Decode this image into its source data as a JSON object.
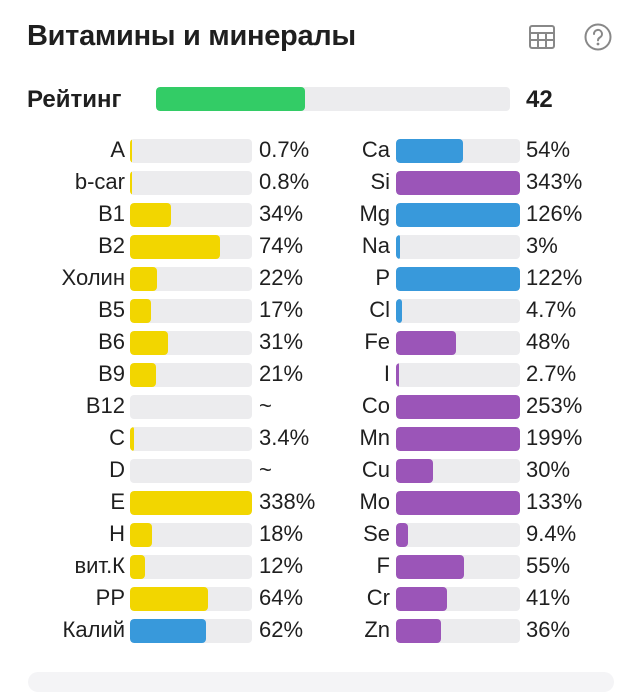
{
  "header": {
    "title": "Витамины и минералы",
    "table_icon": "table-icon",
    "help_icon": "help-circle-icon"
  },
  "rating": {
    "label": "Рейтинг",
    "value": "42",
    "fraction": 0.42,
    "color": "#33cc66"
  },
  "colors": {
    "yellow": "#f2d600",
    "blue": "#3899db",
    "purple": "#9b55b8",
    "track": "#ececee"
  },
  "vitamins": [
    {
      "name": "A",
      "value": "0.7%",
      "percent": 0.7,
      "color": "yellow"
    },
    {
      "name": "b-car",
      "value": "0.8%",
      "percent": 0.8,
      "color": "yellow"
    },
    {
      "name": "B1",
      "value": "34%",
      "percent": 34,
      "color": "yellow"
    },
    {
      "name": "B2",
      "value": "74%",
      "percent": 74,
      "color": "yellow"
    },
    {
      "name": "Холин",
      "value": "22%",
      "percent": 22,
      "color": "yellow"
    },
    {
      "name": "B5",
      "value": "17%",
      "percent": 17,
      "color": "yellow"
    },
    {
      "name": "B6",
      "value": "31%",
      "percent": 31,
      "color": "yellow"
    },
    {
      "name": "B9",
      "value": "21%",
      "percent": 21,
      "color": "yellow"
    },
    {
      "name": "B12",
      "value": "~",
      "percent": 0,
      "color": "yellow"
    },
    {
      "name": "C",
      "value": "3.4%",
      "percent": 3.4,
      "color": "yellow"
    },
    {
      "name": "D",
      "value": "~",
      "percent": 0,
      "color": "yellow"
    },
    {
      "name": "E",
      "value": "338%",
      "percent": 338,
      "color": "yellow"
    },
    {
      "name": "H",
      "value": "18%",
      "percent": 18,
      "color": "yellow"
    },
    {
      "name": "вит.К",
      "value": "12%",
      "percent": 12,
      "color": "yellow"
    },
    {
      "name": "PP",
      "value": "64%",
      "percent": 64,
      "color": "yellow"
    },
    {
      "name": "Калий",
      "value": "62%",
      "percent": 62,
      "color": "blue"
    }
  ],
  "minerals": [
    {
      "name": "Ca",
      "value": "54%",
      "percent": 54,
      "color": "blue"
    },
    {
      "name": "Si",
      "value": "343%",
      "percent": 343,
      "color": "purple"
    },
    {
      "name": "Mg",
      "value": "126%",
      "percent": 126,
      "color": "blue"
    },
    {
      "name": "Na",
      "value": "3%",
      "percent": 3,
      "color": "blue"
    },
    {
      "name": "P",
      "value": "122%",
      "percent": 122,
      "color": "blue"
    },
    {
      "name": "Cl",
      "value": "4.7%",
      "percent": 4.7,
      "color": "blue"
    },
    {
      "name": "Fe",
      "value": "48%",
      "percent": 48,
      "color": "purple"
    },
    {
      "name": "I",
      "value": "2.7%",
      "percent": 2.7,
      "color": "purple"
    },
    {
      "name": "Co",
      "value": "253%",
      "percent": 253,
      "color": "purple"
    },
    {
      "name": "Mn",
      "value": "199%",
      "percent": 199,
      "color": "purple"
    },
    {
      "name": "Cu",
      "value": "30%",
      "percent": 30,
      "color": "purple"
    },
    {
      "name": "Mo",
      "value": "133%",
      "percent": 133,
      "color": "purple"
    },
    {
      "name": "Se",
      "value": "9.4%",
      "percent": 9.4,
      "color": "purple"
    },
    {
      "name": "F",
      "value": "55%",
      "percent": 55,
      "color": "purple"
    },
    {
      "name": "Cr",
      "value": "41%",
      "percent": 41,
      "color": "purple"
    },
    {
      "name": "Zn",
      "value": "36%",
      "percent": 36,
      "color": "purple"
    }
  ]
}
